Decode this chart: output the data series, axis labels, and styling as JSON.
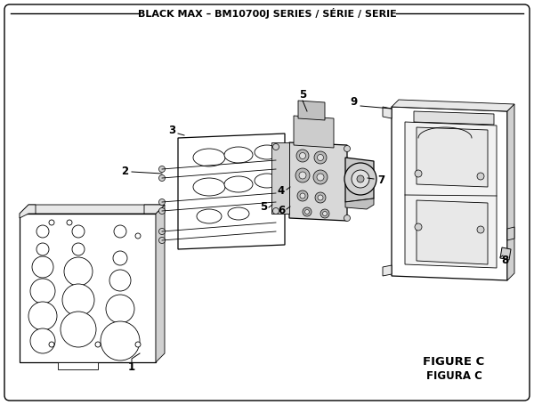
{
  "title": "BLACK MAX – BM10700J SERIES / SÉRIE / SERIE",
  "figure_label": "FIGURE C",
  "figura_label": "FIGURA C",
  "bg_color": "#ffffff",
  "border_color": "#000000",
  "line_color": "#000000",
  "title_fontsize": 8.0,
  "label_fontsize": 8.5
}
